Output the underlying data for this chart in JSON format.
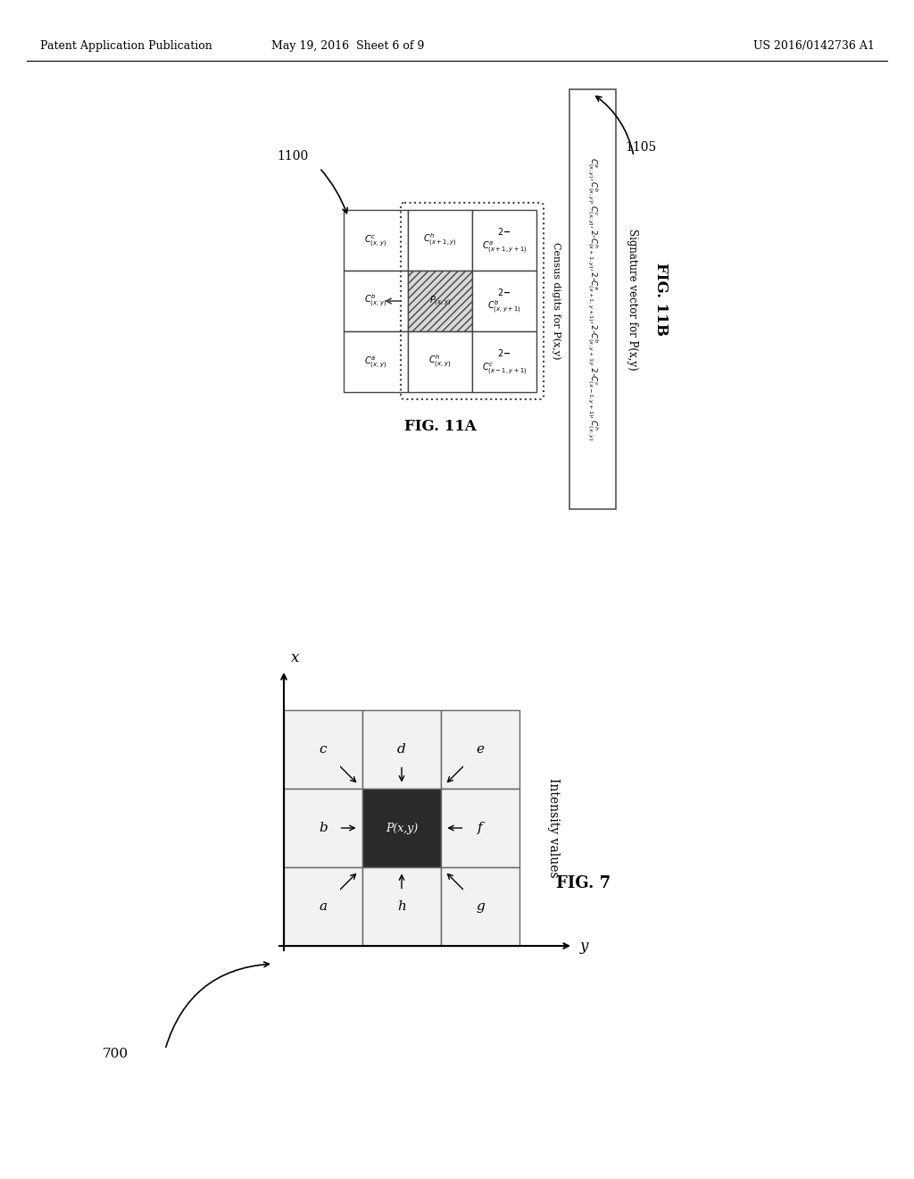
{
  "header_left": "Patent Application Publication",
  "header_mid": "May 19, 2016  Sheet 6 of 9",
  "header_right": "US 2016/0142736 A1",
  "bg_color": "#ffffff",
  "fig7_label": "700",
  "fig7_caption": "FIG. 7",
  "fig7_intensity_label": "Intensity values",
  "fig7_center_color": "#2a2a2a",
  "fig7_center_text_color": "#ffffff",
  "fig11a_label": "1100",
  "fig11a_caption": "FIG. 11A",
  "fig11a_census_label": "Census digits for P(x,y)",
  "fig11b_label": "1105",
  "fig11b_caption": "FIG. 11B",
  "fig11b_sig_label": "Signature vector for P(x,y)",
  "fig11b_formula_line1": "C^a_(x,y), C^b_(x,y), C^c_(x,y), 2-C^h_(x+1,y), 2-C^a_(x+1,y+1), 2-C^b_(x,y+1), 2-C^c_(x-1,y+1), C^h_(x,y)"
}
